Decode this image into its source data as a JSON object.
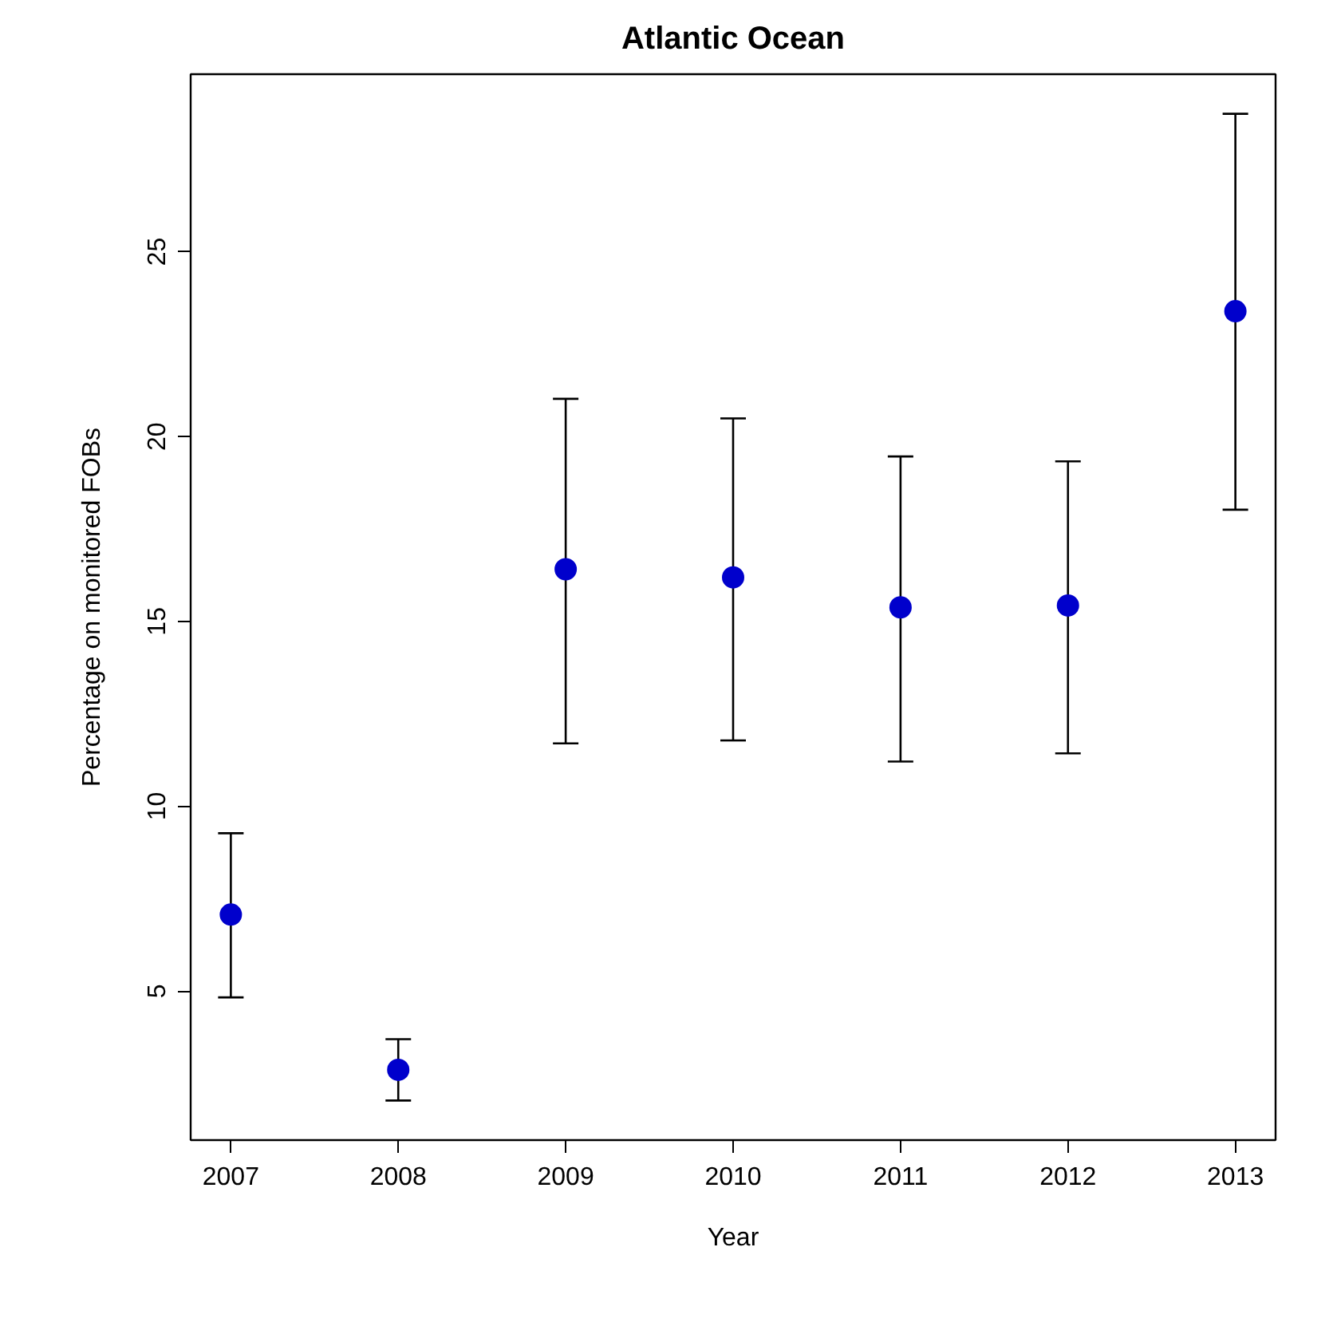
{
  "chart_data": {
    "type": "scatter",
    "title": "Atlantic Ocean",
    "xlabel": "Year",
    "ylabel": "Percentage on monitored FOBs",
    "x": [
      2007,
      2008,
      2009,
      2010,
      2011,
      2012,
      2013
    ],
    "series": [
      {
        "color": "#0000cc",
        "values": [
          7.07,
          2.87,
          16.41,
          16.19,
          15.38,
          15.43,
          23.39
        ],
        "errors": [
          [
            4.83,
            9.27
          ],
          [
            2.04,
            3.7
          ],
          [
            11.7,
            21.02
          ],
          [
            11.78,
            20.49
          ],
          [
            11.21,
            19.46
          ],
          [
            11.43,
            19.33
          ],
          [
            18.02,
            28.73
          ]
        ]
      }
    ],
    "xlim": [
      2006.76,
      2013.24
    ],
    "ylim": [
      0.97,
      29.8
    ],
    "xticks": [
      2007,
      2008,
      2009,
      2010,
      2011,
      2012,
      2013
    ],
    "yticks": [
      5,
      10,
      15,
      20,
      25
    ],
    "grid": false,
    "marker": "circle"
  }
}
